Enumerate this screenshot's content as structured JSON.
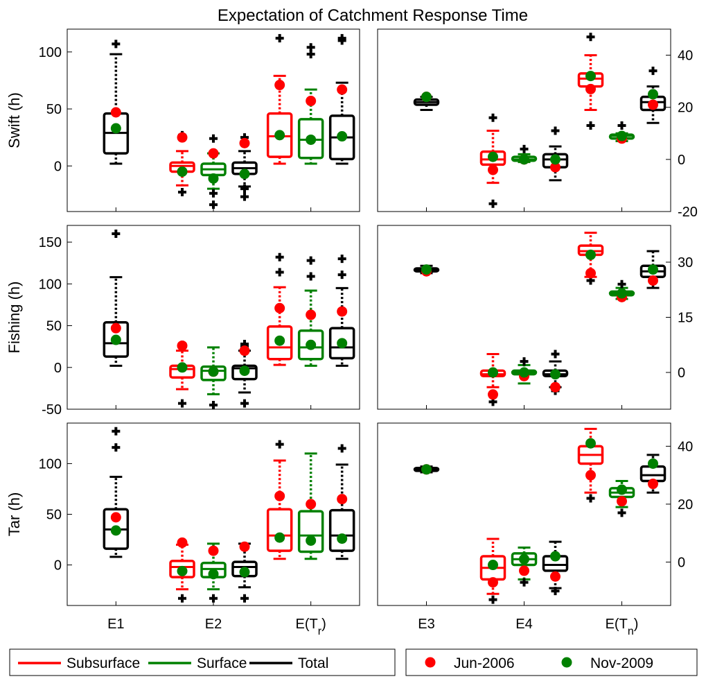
{
  "figure": {
    "title": "Expectation of Catchment Response Time",
    "colors": {
      "Subsurface": "#ff0000",
      "Surface": "#008000",
      "Total": "#000000",
      "Jun-2006": "#ff0000",
      "Nov-2009": "#008000"
    },
    "legend_lines": [
      {
        "label": "Subsurface",
        "color": "#ff0000"
      },
      {
        "label": "Surface",
        "color": "#008000"
      },
      {
        "label": "Total",
        "color": "#000000"
      }
    ],
    "legend_dots": [
      {
        "label": "Jun-2006",
        "color": "#ff0000"
      },
      {
        "label": "Nov-2009",
        "color": "#008000"
      }
    ]
  },
  "chart_data": [
    {
      "type": "box",
      "row": "Swift",
      "side": "left",
      "ylabel": "Swift (h)",
      "ylim": [
        -40,
        120
      ],
      "yticks": [
        0,
        50,
        100
      ],
      "categories": [
        "E1",
        "E2",
        "E(Tr)"
      ],
      "boxes": [
        {
          "category": "E1",
          "series": "Total",
          "whisker_low": 2,
          "q1": 11,
          "median": 29,
          "q3": 46,
          "whisker_high": 98,
          "outliers": [
            107
          ],
          "Jun-2006": 47,
          "Nov-2009": 33
        },
        {
          "category": "E2",
          "series": "Subsurface",
          "whisker_low": -17,
          "q1": -5,
          "median": 0,
          "q3": 3,
          "whisker_high": 13,
          "outliers": [
            -23,
            25,
            27
          ],
          "Jun-2006": 25,
          "Nov-2009": -5
        },
        {
          "category": "E2",
          "series": "Surface",
          "whisker_low": -20,
          "q1": -8,
          "median": -3,
          "q3": 2,
          "whisker_high": 11,
          "outliers": [
            -24,
            -34,
            24
          ],
          "Jun-2006": 11,
          "Nov-2009": -11
        },
        {
          "category": "E2",
          "series": "Total",
          "whisker_low": -18,
          "q1": -7,
          "median": -2,
          "q3": 3,
          "whisker_high": 13,
          "outliers": [
            -20,
            -27,
            21,
            25
          ],
          "Jun-2006": 20,
          "Nov-2009": -7
        },
        {
          "category": "E(Tr)",
          "series": "Subsurface",
          "whisker_low": 2,
          "q1": 8,
          "median": 26,
          "q3": 46,
          "whisker_high": 79,
          "outliers": [
            112
          ],
          "Jun-2006": 71,
          "Nov-2009": 27
        },
        {
          "category": "E(Tr)",
          "series": "Surface",
          "whisker_low": 2,
          "q1": 7,
          "median": 23,
          "q3": 41,
          "whisker_high": 67,
          "outliers": [
            98,
            104
          ],
          "Jun-2006": 57,
          "Nov-2009": 23
        },
        {
          "category": "E(Tr)",
          "series": "Total",
          "whisker_low": 2,
          "q1": 6,
          "median": 25,
          "q3": 44,
          "whisker_high": 73,
          "outliers": [
            110,
            112
          ],
          "Jun-2006": 67,
          "Nov-2009": 26
        }
      ]
    },
    {
      "type": "box",
      "row": "Swift",
      "side": "right",
      "ylabel": "",
      "ylim": [
        -20,
        50
      ],
      "yticks": [
        -20,
        0,
        20,
        40
      ],
      "categories": [
        "E3",
        "E4",
        "E(Tn)"
      ],
      "boxes": [
        {
          "category": "E3",
          "series": "Total",
          "whisker_low": 19,
          "q1": 21,
          "median": 22,
          "q3": 23,
          "whisker_high": 24,
          "outliers": [],
          "Jun-2006": 24,
          "Nov-2009": 24
        },
        {
          "category": "E4",
          "series": "Subsurface",
          "whisker_low": -9,
          "q1": -2,
          "median": 0,
          "q3": 3,
          "whisker_high": 11,
          "outliers": [
            -17,
            16
          ],
          "Jun-2006": -4,
          "Nov-2009": 1
        },
        {
          "category": "E4",
          "series": "Surface",
          "whisker_low": -1,
          "q1": -0.5,
          "median": 0,
          "q3": 1,
          "whisker_high": 2,
          "outliers": [
            4
          ],
          "Jun-2006": 0,
          "Nov-2009": 0
        },
        {
          "category": "E4",
          "series": "Total",
          "whisker_low": -8,
          "q1": -3,
          "median": 0,
          "q3": 2,
          "whisker_high": 5,
          "outliers": [
            11
          ],
          "Jun-2006": -3,
          "Nov-2009": 0
        },
        {
          "category": "E(Tn)",
          "series": "Subsurface",
          "whisker_low": 19,
          "q1": 28,
          "median": 31,
          "q3": 33,
          "whisker_high": 40,
          "outliers": [
            13,
            47
          ],
          "Jun-2006": 27,
          "Nov-2009": 32
        },
        {
          "category": "E(Tn)",
          "series": "Surface",
          "whisker_low": 7,
          "q1": 8,
          "median": 9,
          "q3": 9.5,
          "whisker_high": 10,
          "outliers": [
            13
          ],
          "Jun-2006": 8,
          "Nov-2009": 9
        },
        {
          "category": "E(Tn)",
          "series": "Total",
          "whisker_low": 14,
          "q1": 19,
          "median": 22,
          "q3": 24,
          "whisker_high": 28,
          "outliers": [
            34
          ],
          "Jun-2006": 21,
          "Nov-2009": 25
        }
      ]
    },
    {
      "type": "box",
      "row": "Fishing",
      "side": "left",
      "ylabel": "Fishing (h)",
      "ylim": [
        -50,
        170
      ],
      "yticks": [
        -50,
        0,
        50,
        100,
        150
      ],
      "categories": [
        "E1",
        "E2",
        "E(Tr)"
      ],
      "boxes": [
        {
          "category": "E1",
          "series": "Total",
          "whisker_low": 2,
          "q1": 13,
          "median": 29,
          "q3": 54,
          "whisker_high": 108,
          "outliers": [
            160
          ],
          "Jun-2006": 47,
          "Nov-2009": 33
        },
        {
          "category": "E2",
          "series": "Subsurface",
          "whisker_low": -26,
          "q1": -12,
          "median": -2,
          "q3": 2,
          "whisker_high": 20,
          "outliers": [
            -43,
            25,
            27
          ],
          "Jun-2006": 26,
          "Nov-2009": 0
        },
        {
          "category": "E2",
          "series": "Surface",
          "whisker_low": -32,
          "q1": -15,
          "median": -4,
          "q3": 1,
          "whisker_high": 24,
          "outliers": [
            -45
          ],
          "Jun-2006": -5,
          "Nov-2009": -5
        },
        {
          "category": "E2",
          "series": "Total",
          "whisker_low": -30,
          "q1": -14,
          "median": -1,
          "q3": 2,
          "whisker_high": 20,
          "outliers": [
            -43,
            25,
            28
          ],
          "Jun-2006": 20,
          "Nov-2009": -4
        },
        {
          "category": "E(Tr)",
          "series": "Subsurface",
          "whisker_low": 3,
          "q1": 10,
          "median": 24,
          "q3": 49,
          "whisker_high": 96,
          "outliers": [
            114,
            132
          ],
          "Jun-2006": 71,
          "Nov-2009": 32
        },
        {
          "category": "E(Tr)",
          "series": "Surface",
          "whisker_low": 2,
          "q1": 10,
          "median": 24,
          "q3": 44,
          "whisker_high": 92,
          "outliers": [
            109,
            128
          ],
          "Jun-2006": 63,
          "Nov-2009": 27
        },
        {
          "category": "E(Tr)",
          "series": "Total",
          "whisker_low": 2,
          "q1": 11,
          "median": 24,
          "q3": 47,
          "whisker_high": 95,
          "outliers": [
            111,
            130
          ],
          "Jun-2006": 67,
          "Nov-2009": 29
        }
      ]
    },
    {
      "type": "box",
      "row": "Fishing",
      "side": "right",
      "ylabel": "",
      "ylim": [
        -10,
        40
      ],
      "yticks": [
        0,
        15,
        30
      ],
      "categories": [
        "E3",
        "E4",
        "E(Tn)"
      ],
      "boxes": [
        {
          "category": "E3",
          "series": "Total",
          "whisker_low": 27,
          "q1": 27.5,
          "median": 28,
          "q3": 28.3,
          "whisker_high": 29,
          "outliers": [],
          "Jun-2006": 27.5,
          "Nov-2009": 28
        },
        {
          "category": "E4",
          "series": "Subsurface",
          "whisker_low": -4,
          "q1": -1,
          "median": -0.5,
          "q3": 0.5,
          "whisker_high": 5,
          "outliers": [
            -8
          ],
          "Jun-2006": -6,
          "Nov-2009": 0
        },
        {
          "category": "E4",
          "series": "Surface",
          "whisker_low": -3,
          "q1": -0.5,
          "median": 0,
          "q3": 0.5,
          "whisker_high": 2,
          "outliers": [
            3
          ],
          "Jun-2006": -1,
          "Nov-2009": 0
        },
        {
          "category": "E4",
          "series": "Total",
          "whisker_low": -4,
          "q1": -1,
          "median": -0.5,
          "q3": 0.5,
          "whisker_high": 3,
          "outliers": [
            -5,
            5
          ],
          "Jun-2006": -4,
          "Nov-2009": -0.5
        },
        {
          "category": "E(Tn)",
          "series": "Subsurface",
          "whisker_low": 26,
          "q1": 32,
          "median": 33,
          "q3": 34.5,
          "whisker_high": 38,
          "outliers": [
            25
          ],
          "Jun-2006": 27,
          "Nov-2009": 32
        },
        {
          "category": "E(Tn)",
          "series": "Surface",
          "whisker_low": 20,
          "q1": 21,
          "median": 21.5,
          "q3": 22,
          "whisker_high": 23,
          "outliers": [
            24
          ],
          "Jun-2006": 20.5,
          "Nov-2009": 21.5
        },
        {
          "category": "E(Tn)",
          "series": "Total",
          "whisker_low": 23,
          "q1": 26,
          "median": 27.5,
          "q3": 29,
          "whisker_high": 33,
          "outliers": [],
          "Jun-2006": 25,
          "Nov-2009": 28
        }
      ]
    },
    {
      "type": "box",
      "row": "Tar",
      "side": "left",
      "ylabel": "Tar (h)",
      "ylim": [
        -40,
        140
      ],
      "yticks": [
        0,
        50,
        100
      ],
      "categories": [
        "E1",
        "E2",
        "E(Tr)"
      ],
      "boxes": [
        {
          "category": "E1",
          "series": "Total",
          "whisker_low": 8,
          "q1": 16,
          "median": 35,
          "q3": 55,
          "whisker_high": 87,
          "outliers": [
            116,
            132
          ],
          "Jun-2006": 47,
          "Nov-2009": 34
        },
        {
          "category": "E2",
          "series": "Subsurface",
          "whisker_low": -24,
          "q1": -12,
          "median": -2,
          "q3": 4,
          "whisker_high": 20,
          "outliers": [
            -33,
            22
          ],
          "Jun-2006": 22,
          "Nov-2009": -6
        },
        {
          "category": "E2",
          "series": "Surface",
          "whisker_low": -24,
          "q1": -12,
          "median": -4,
          "q3": 2,
          "whisker_high": 21,
          "outliers": [
            -33
          ],
          "Jun-2006": 14,
          "Nov-2009": -9
        },
        {
          "category": "E2",
          "series": "Total",
          "whisker_low": -22,
          "q1": -11,
          "median": -2,
          "q3": 3,
          "whisker_high": 21,
          "outliers": [
            -33
          ],
          "Jun-2006": 18,
          "Nov-2009": -7
        },
        {
          "category": "E(Tr)",
          "series": "Subsurface",
          "whisker_low": 6,
          "q1": 14,
          "median": 29,
          "q3": 55,
          "whisker_high": 103,
          "outliers": [
            119
          ],
          "Jun-2006": 68,
          "Nov-2009": 27
        },
        {
          "category": "E(Tr)",
          "series": "Surface",
          "whisker_low": 6,
          "q1": 13,
          "median": 29,
          "q3": 53,
          "whisker_high": 110,
          "outliers": [],
          "Jun-2006": 60,
          "Nov-2009": 24
        },
        {
          "category": "E(Tr)",
          "series": "Total",
          "whisker_low": 6,
          "q1": 14,
          "median": 29,
          "q3": 54,
          "whisker_high": 99,
          "outliers": [
            115
          ],
          "Jun-2006": 65,
          "Nov-2009": 26
        }
      ]
    },
    {
      "type": "box",
      "row": "Tar",
      "side": "right",
      "ylabel": "",
      "ylim": [
        -15,
        48
      ],
      "yticks": [
        0,
        20,
        40
      ],
      "categories": [
        "E3",
        "E4",
        "E(Tn)"
      ],
      "boxes": [
        {
          "category": "E3",
          "series": "Total",
          "whisker_low": 31,
          "q1": 31.5,
          "median": 32,
          "q3": 32.5,
          "whisker_high": 33,
          "outliers": [],
          "Jun-2006": 32,
          "Nov-2009": 32
        },
        {
          "category": "E4",
          "series": "Subsurface",
          "whisker_low": -11,
          "q1": -6,
          "median": -2,
          "q3": 2,
          "whisker_high": 8,
          "outliers": [
            -13
          ],
          "Jun-2006": -7,
          "Nov-2009": -1
        },
        {
          "category": "E4",
          "series": "Surface",
          "whisker_low": -6,
          "q1": -1,
          "median": 1,
          "q3": 3,
          "whisker_high": 5,
          "outliers": [
            -7
          ],
          "Jun-2006": -3,
          "Nov-2009": 1
        },
        {
          "category": "E4",
          "series": "Total",
          "whisker_low": -9,
          "q1": -3,
          "median": -1,
          "q3": 2,
          "whisker_high": 7,
          "outliers": [
            -10
          ],
          "Jun-2006": -5,
          "Nov-2009": 2
        },
        {
          "category": "E(Tn)",
          "series": "Subsurface",
          "whisker_low": 24,
          "q1": 34,
          "median": 37,
          "q3": 40,
          "whisker_high": 46,
          "outliers": [
            22
          ],
          "Jun-2006": 30,
          "Nov-2009": 41
        },
        {
          "category": "E(Tn)",
          "series": "Surface",
          "whisker_low": 19,
          "q1": 22.5,
          "median": 24,
          "q3": 25.5,
          "whisker_high": 28,
          "outliers": [
            17
          ],
          "Jun-2006": 21,
          "Nov-2009": 25
        },
        {
          "category": "E(Tn)",
          "series": "Total",
          "whisker_low": 24,
          "q1": 28,
          "median": 30,
          "q3": 33,
          "whisker_high": 37,
          "outliers": [],
          "Jun-2006": 27,
          "Nov-2009": 34
        }
      ]
    }
  ]
}
